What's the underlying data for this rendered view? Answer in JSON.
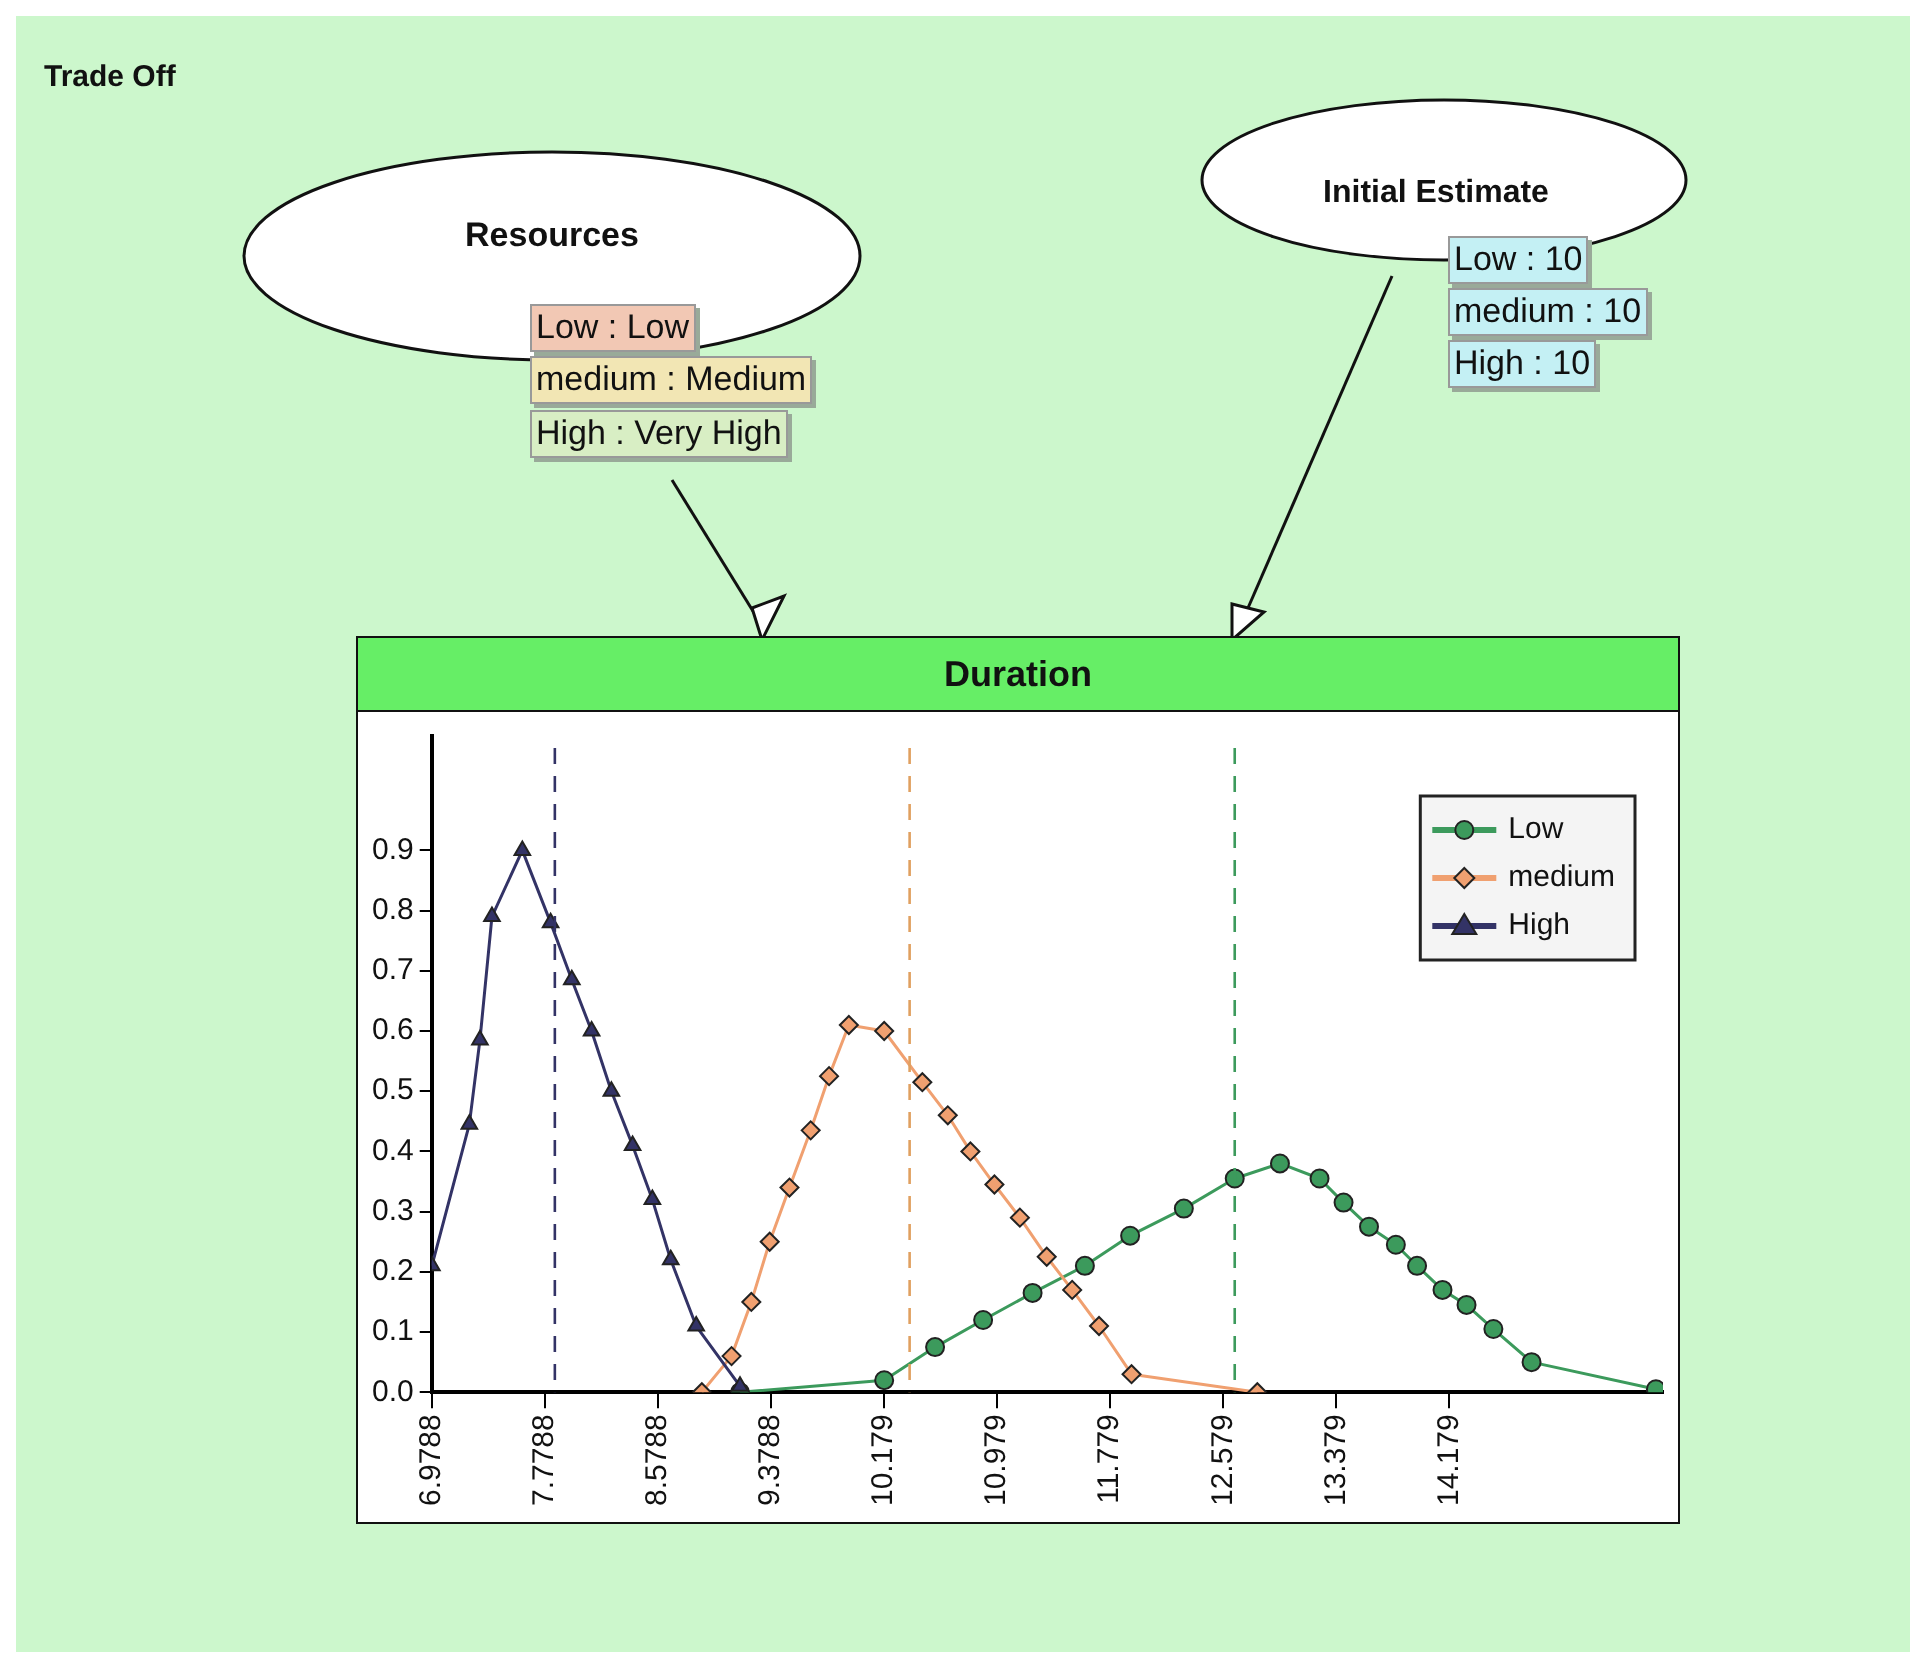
{
  "chart_data": {
    "type": "line",
    "title": "Duration",
    "annotations": [
      "Trade Off",
      "Resources",
      "Low : Low",
      "medium : Medium",
      "High : Very High",
      "Initial Estimate",
      "Low : 10",
      "medium : 10",
      "High : 10"
    ],
    "series": [
      {
        "name": "Low",
        "color": "#3c9a5c",
        "marker": "circle",
        "x": [
          9.16,
          10.18,
          10.54,
          10.88,
          11.23,
          11.6,
          11.92,
          12.3,
          12.66,
          12.98,
          13.26,
          13.43,
          13.61,
          13.8,
          13.95,
          14.13,
          14.3,
          14.49,
          14.76,
          15.64
        ],
        "values": [
          0,
          0.02,
          0.075,
          0.12,
          0.165,
          0.21,
          0.26,
          0.305,
          0.355,
          0.38,
          0.355,
          0.315,
          0.275,
          0.245,
          0.21,
          0.17,
          0.145,
          0.105,
          0.05,
          0.005
        ]
      },
      {
        "name": "medium",
        "color": "#f0a070",
        "marker": "diamond",
        "x": [
          8.89,
          9.1,
          9.24,
          9.37,
          9.51,
          9.66,
          9.79,
          9.93,
          10.18,
          10.45,
          10.63,
          10.79,
          10.96,
          11.14,
          11.33,
          11.51,
          11.7,
          11.93,
          12.82
        ],
        "values": [
          0,
          0.06,
          0.15,
          0.25,
          0.34,
          0.435,
          0.525,
          0.61,
          0.6,
          0.515,
          0.46,
          0.4,
          0.345,
          0.29,
          0.225,
          0.17,
          0.11,
          0.03,
          0
        ]
      },
      {
        "name": "High",
        "color": "#333366",
        "marker": "triangle",
        "x": [
          6.98,
          7.245,
          7.32,
          7.405,
          7.62,
          7.82,
          7.97,
          8.11,
          8.25,
          8.4,
          8.54,
          8.67,
          8.85,
          9.16
        ],
        "values": [
          0.21,
          0.445,
          0.585,
          0.79,
          0.9,
          0.78,
          0.685,
          0.6,
          0.5,
          0.41,
          0.32,
          0.22,
          0.11,
          0.01
        ]
      }
    ],
    "xlim": [
      6.9788,
      15.69
    ],
    "xticks": [
      6.9788,
      7.7788,
      8.5788,
      9.3788,
      10.179,
      10.979,
      11.779,
      12.579,
      13.379,
      14.179
    ],
    "ylim": [
      0,
      1.09
    ],
    "yticks": [
      {
        "value": 0,
        "label": "0.0"
      },
      {
        "value": 0.1,
        "label": "0.1"
      },
      {
        "value": 0.2,
        "label": "0.2"
      },
      {
        "value": 0.3,
        "label": "0.3"
      },
      {
        "value": 0.4,
        "label": "0.4"
      },
      {
        "value": 0.5,
        "label": "0.5"
      },
      {
        "value": 0.6,
        "label": "0.6"
      },
      {
        "value": 0.7,
        "label": "0.7"
      },
      {
        "value": 0.8,
        "label": "0.8"
      },
      {
        "value": 0.9,
        "label": "0.9"
      }
    ],
    "ref_lines": [
      {
        "axis": "x",
        "value": 7.85,
        "color": "#333366",
        "line_style": "dashed"
      },
      {
        "axis": "x",
        "value": 10.36,
        "color": "#e0a060",
        "line_style": "dashed"
      },
      {
        "axis": "x",
        "value": 12.66,
        "color": "#3c9a5c",
        "line_style": "dashed"
      }
    ],
    "grid": false,
    "legend": "top right",
    "line_style": "solid"
  }
}
